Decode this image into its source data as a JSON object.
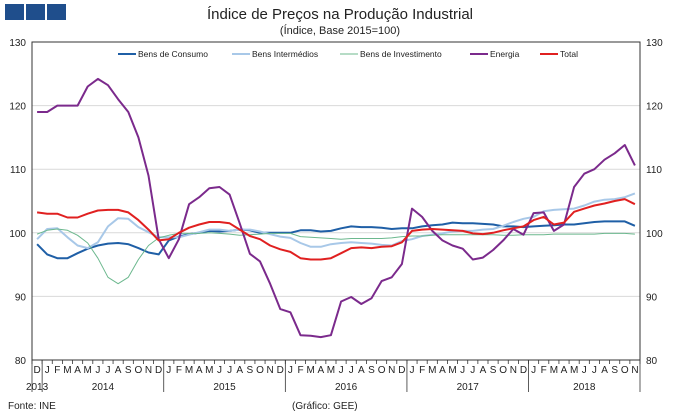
{
  "header_marks": [
    "",
    "",
    ""
  ],
  "chart_data": {
    "type": "line",
    "title": "Índice de Preços na Produção Industrial",
    "subtitle": "(Índice, Base 2015=100)",
    "ylim": [
      80,
      130
    ],
    "yticks": [
      80,
      90,
      100,
      110,
      120,
      130
    ],
    "grid": true,
    "legend_position": "top",
    "month_labels": [
      "D",
      "J",
      "F",
      "M",
      "A",
      "M",
      "J",
      "J",
      "A",
      "S",
      "O",
      "N",
      "D",
      "J",
      "F",
      "M",
      "A",
      "M",
      "J",
      "J",
      "A",
      "S",
      "O",
      "N",
      "D",
      "J",
      "F",
      "M",
      "A",
      "M",
      "J",
      "J",
      "A",
      "S",
      "O",
      "N",
      "D",
      "J",
      "F",
      "M",
      "A",
      "M",
      "J",
      "J",
      "A",
      "S",
      "O",
      "N",
      "D",
      "J",
      "F",
      "M",
      "A",
      "M",
      "J",
      "J",
      "A",
      "S",
      "O",
      "N"
    ],
    "years": [
      {
        "label": "2013",
        "start": 0,
        "end": 0
      },
      {
        "label": "2014",
        "start": 1,
        "end": 12
      },
      {
        "label": "2015",
        "start": 13,
        "end": 24
      },
      {
        "label": "2016",
        "start": 25,
        "end": 36
      },
      {
        "label": "2017",
        "start": 37,
        "end": 48
      },
      {
        "label": "2018",
        "start": 49,
        "end": 59
      }
    ],
    "series": [
      {
        "name": "Bens de Consumo",
        "color": "#1f5fa6",
        "values": [
          98.2,
          96.6,
          96.0,
          96.0,
          96.8,
          97.5,
          98.0,
          98.3,
          98.4,
          98.2,
          97.6,
          96.9,
          96.6,
          98.8,
          99.4,
          99.8,
          100.0,
          100.3,
          100.2,
          100.3,
          100.5,
          100.4,
          100.0,
          100.0,
          100.0,
          100.0,
          100.4,
          100.4,
          100.2,
          100.3,
          100.7,
          101.0,
          100.9,
          100.9,
          100.8,
          100.6,
          100.7,
          100.7,
          101.0,
          101.2,
          101.3,
          101.6,
          101.5,
          101.5,
          101.4,
          101.3,
          101.0,
          101.0,
          100.9,
          101.0,
          101.1,
          101.2,
          101.3,
          101.3,
          101.5,
          101.7,
          101.8,
          101.8,
          101.8,
          101.1
        ]
      },
      {
        "name": "Bens Intermédios",
        "color": "#a8c8e8",
        "values": [
          99.0,
          100.6,
          100.7,
          99.3,
          98.0,
          97.6,
          98.5,
          101.0,
          102.3,
          102.2,
          100.9,
          100.1,
          99.3,
          99.3,
          99.3,
          99.7,
          100.1,
          100.5,
          100.5,
          100.3,
          100.5,
          100.5,
          100.2,
          99.8,
          99.4,
          99.2,
          98.4,
          97.8,
          97.8,
          98.2,
          98.4,
          98.5,
          98.4,
          98.3,
          98.1,
          98.0,
          98.7,
          99.0,
          99.5,
          99.7,
          99.9,
          100.2,
          100.3,
          100.3,
          100.5,
          100.6,
          101.1,
          101.7,
          102.2,
          102.5,
          103.4,
          103.6,
          103.7,
          103.8,
          104.3,
          104.9,
          105.2,
          105.3,
          105.6,
          106.2
        ]
      },
      {
        "name": "Bens de Investimento",
        "color": "#6cb88e",
        "values": [
          99.8,
          100.4,
          100.6,
          100.4,
          99.6,
          98.4,
          96.0,
          93.0,
          92.0,
          93.0,
          95.8,
          98.0,
          99.2,
          99.6,
          99.9,
          99.9,
          99.9,
          100.0,
          99.9,
          99.8,
          99.6,
          99.7,
          99.8,
          99.9,
          99.9,
          99.9,
          99.4,
          99.3,
          99.2,
          99.1,
          99.0,
          99.1,
          99.1,
          99.1,
          99.1,
          99.2,
          99.4,
          99.5,
          99.5,
          99.6,
          99.7,
          99.7,
          99.7,
          99.7,
          99.7,
          99.7,
          99.6,
          99.6,
          99.7,
          99.7,
          99.7,
          99.8,
          99.8,
          99.8,
          99.8,
          99.8,
          99.9,
          99.9,
          99.9,
          99.8
        ]
      },
      {
        "name": "Energia",
        "color": "#7b2a8c",
        "values": [
          119.0,
          119.0,
          120.0,
          120.0,
          120.0,
          123.0,
          124.2,
          123.2,
          121.0,
          119.0,
          115.0,
          109.0,
          99.0,
          96.0,
          99.0,
          104.5,
          105.6,
          107.0,
          107.2,
          106.0,
          101.5,
          96.7,
          95.5,
          92.0,
          88.0,
          87.5,
          83.9,
          83.8,
          83.6,
          83.9,
          89.2,
          89.9,
          88.8,
          89.7,
          92.4,
          93.0,
          95.1,
          103.8,
          102.5,
          100.3,
          98.8,
          98.0,
          97.5,
          95.8,
          96.1,
          97.3,
          98.8,
          100.6,
          99.7,
          103.1,
          103.2,
          100.3,
          101.3,
          107.2,
          109.3,
          110.0,
          111.5,
          112.5,
          113.8,
          110.6
        ]
      },
      {
        "name": "Total",
        "color": "#e02020",
        "values": [
          103.2,
          103.0,
          103.0,
          102.4,
          102.4,
          103.0,
          103.5,
          103.6,
          103.6,
          103.2,
          102.0,
          100.5,
          98.8,
          99.0,
          100.0,
          100.8,
          101.3,
          101.7,
          101.7,
          101.5,
          100.5,
          99.5,
          99.0,
          98.0,
          97.4,
          97.0,
          96.0,
          95.8,
          95.8,
          96.0,
          96.8,
          97.6,
          97.7,
          97.6,
          97.8,
          97.9,
          98.5,
          100.3,
          100.5,
          100.6,
          100.5,
          100.4,
          100.3,
          99.9,
          99.8,
          100.0,
          100.4,
          100.7,
          101.0,
          102.0,
          102.5,
          101.3,
          101.6,
          103.3,
          103.8,
          104.3,
          104.6,
          105.0,
          105.3,
          104.5
        ]
      }
    ]
  },
  "footer": {
    "source": "Fonte: INE",
    "credit": "(Gráfico: GEE)"
  }
}
